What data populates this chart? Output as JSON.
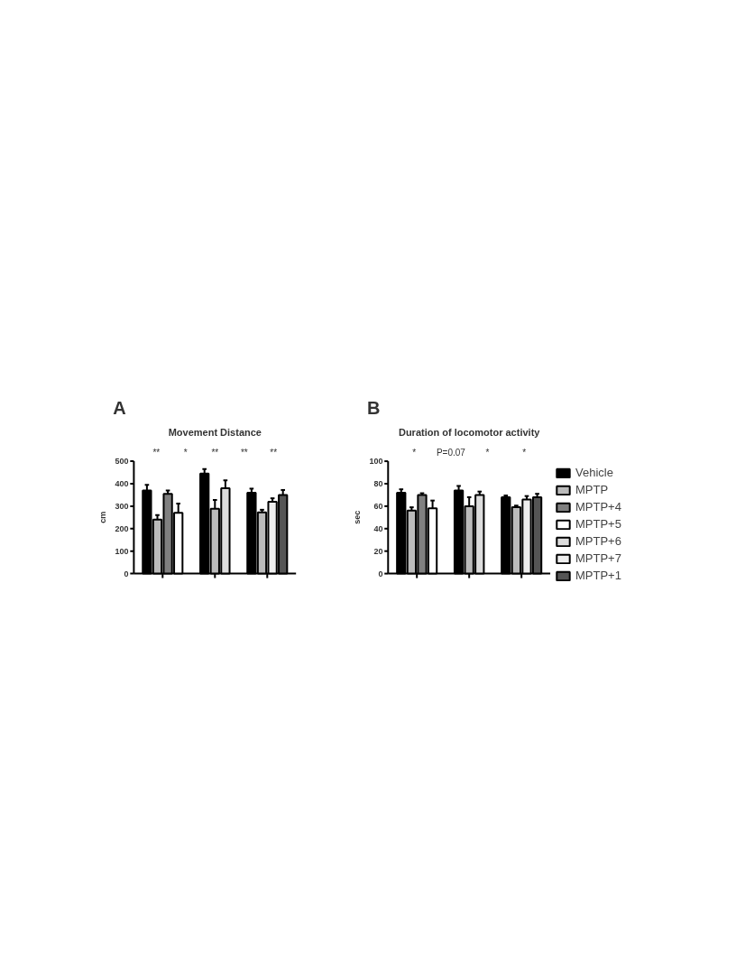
{
  "chart_data": [
    {
      "type": "bar",
      "title": "Movement Distance",
      "ylabel": "cm",
      "categories": [
        null,
        null,
        null
      ],
      "ylim": [
        0,
        500
      ],
      "yticks": [
        0,
        100,
        200,
        300,
        400,
        500
      ],
      "tick_labels": "y",
      "grid": false,
      "legend": false,
      "annotations": [
        "A",
        "**",
        "*",
        "**",
        "**",
        "**"
      ],
      "series": [
        {
          "color": "#000000",
          "values": [
            370,
            445,
            360
          ],
          "errors": [
            25,
            20,
            18
          ]
        },
        {
          "color": "#bbbbbb",
          "values": [
            240,
            288,
            272
          ],
          "errors": [
            20,
            40,
            12
          ]
        },
        {
          "color": "#808080",
          "values": [
            355,
            null,
            null
          ],
          "errors": [
            15,
            null,
            null
          ]
        },
        {
          "color": "#ffffff",
          "values": [
            270,
            null,
            null
          ],
          "errors": [
            42,
            null,
            null
          ]
        },
        {
          "color": "#dddddd",
          "values": [
            null,
            380,
            null
          ],
          "errors": [
            null,
            35,
            null
          ]
        },
        {
          "color": "#eeeeee",
          "values": [
            null,
            null,
            320
          ],
          "errors": [
            null,
            null,
            15
          ]
        },
        {
          "color": "#555555",
          "values": [
            null,
            null,
            350
          ],
          "errors": [
            null,
            null,
            22
          ]
        }
      ]
    },
    {
      "type": "bar",
      "title": "Duration of locomotor activity",
      "ylabel": "sec",
      "categories": [
        null,
        null,
        null
      ],
      "ylim": [
        0,
        100
      ],
      "yticks": [
        0,
        20,
        40,
        60,
        80,
        100
      ],
      "tick_labels": "y",
      "grid": false,
      "legend": "right",
      "annotations": [
        "B",
        "*",
        "P=0.07",
        "*",
        "*"
      ],
      "series": [
        {
          "name": "Vehicle",
          "color": "#000000",
          "values": [
            72,
            74,
            68
          ],
          "errors": [
            3,
            4,
            1.5
          ]
        },
        {
          "name": "MPTP",
          "color": "#bbbbbb",
          "values": [
            56,
            60,
            59
          ],
          "errors": [
            3,
            8,
            1.5
          ]
        },
        {
          "name": "MPTP+4",
          "color": "#808080",
          "values": [
            70,
            null,
            null
          ],
          "errors": [
            1.5,
            null,
            null
          ]
        },
        {
          "name": "MPTP+5",
          "color": "#ffffff",
          "values": [
            58,
            null,
            null
          ],
          "errors": [
            7,
            null,
            null
          ]
        },
        {
          "name": "MPTP+6",
          "color": "#dddddd",
          "values": [
            null,
            70,
            null
          ],
          "errors": [
            null,
            3,
            null
          ]
        },
        {
          "name": "MPTP+7",
          "color": "#eeeeee",
          "values": [
            null,
            null,
            66
          ],
          "errors": [
            null,
            null,
            3
          ]
        },
        {
          "name": "MPTP+1",
          "color": "#555555",
          "values": [
            null,
            null,
            68
          ],
          "errors": [
            null,
            null,
            3
          ]
        }
      ]
    }
  ]
}
